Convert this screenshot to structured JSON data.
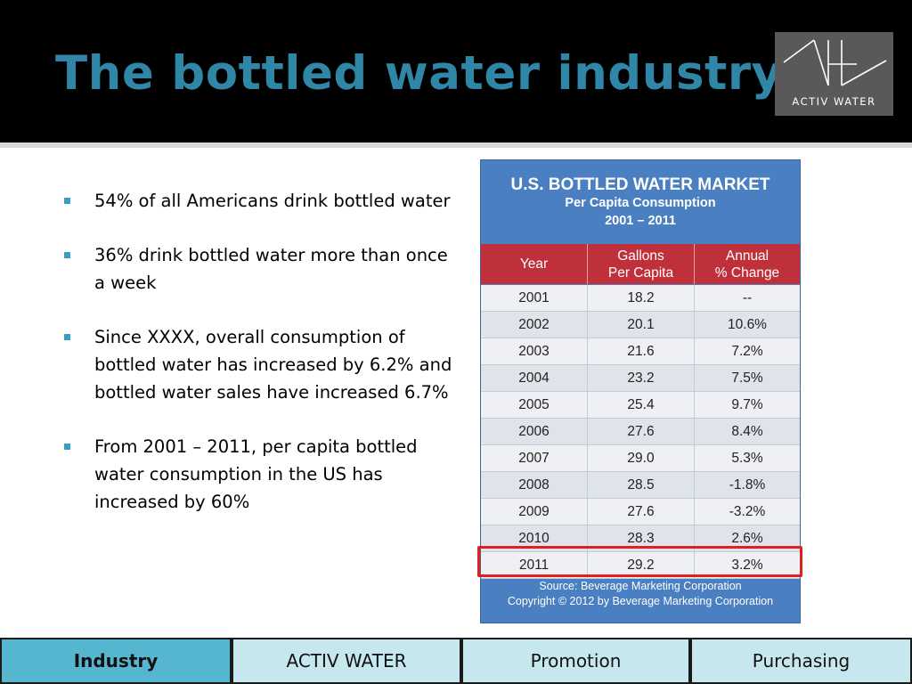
{
  "header": {
    "title": "The bottled water industry",
    "logo_text": "ACTIV WATER"
  },
  "bullets": [
    "54% of all Americans drink bottled water",
    "36% drink bottled water more than once a week",
    "Since XXXX, overall consumption of bottled water has increased by 6.2% and bottled water sales have increased 6.7%",
    "From 2001 – 2011, per capita bottled water consumption in the US has increased by 60%"
  ],
  "table": {
    "title": "U.S. BOTTLED WATER MARKET",
    "subtitle": "Per Capita Consumption",
    "range": "2001 – 2011",
    "columns": [
      "Year",
      "Gallons\nPer Capita",
      "Annual\n% Change"
    ],
    "rows": [
      [
        "2001",
        "18.2",
        "--"
      ],
      [
        "2002",
        "20.1",
        "10.6%"
      ],
      [
        "2003",
        "21.6",
        "7.2%"
      ],
      [
        "2004",
        "23.2",
        "7.5%"
      ],
      [
        "2005",
        "25.4",
        "9.7%"
      ],
      [
        "2006",
        "27.6",
        "8.4%"
      ],
      [
        "2007",
        "29.0",
        "5.3%"
      ],
      [
        "2008",
        "28.5",
        "-1.8%"
      ],
      [
        "2009",
        "27.6",
        "-3.2%"
      ],
      [
        "2010",
        "28.3",
        "2.6%"
      ],
      [
        "2011",
        "29.2",
        "3.2%"
      ]
    ],
    "source": "Source: Beverage Marketing Corporation",
    "copyright": "Copyright © 2012 by Beverage Marketing Corporation"
  },
  "nav": {
    "tabs": [
      {
        "label": "Industry",
        "active": true
      },
      {
        "label": "ACTIV WATER",
        "active": false
      },
      {
        "label": "Promotion",
        "active": false
      },
      {
        "label": "Purchasing",
        "active": false
      }
    ]
  },
  "colors": {
    "title": "#2f86a6",
    "bullet": "#3d9dc3",
    "table_header": "#4a7fc1",
    "column_header": "#c0303a",
    "highlight": "#e02020",
    "nav_active": "#57b6cf",
    "nav_inactive": "#c7e7ef"
  }
}
